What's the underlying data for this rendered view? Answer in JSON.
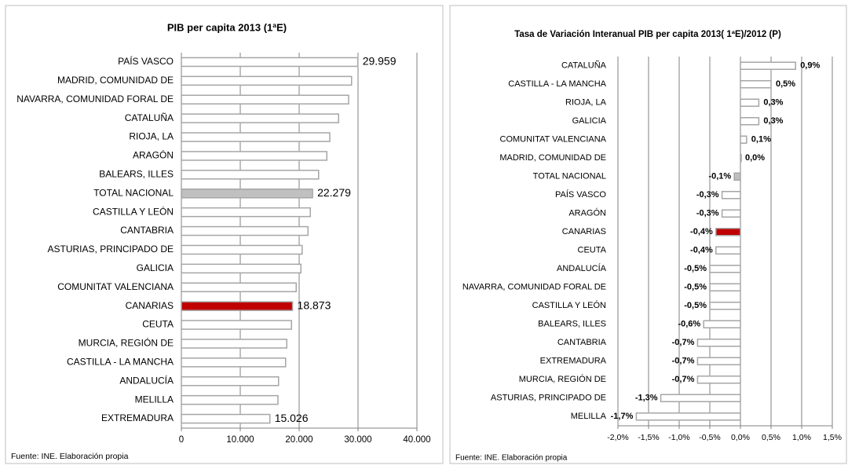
{
  "chart_data": [
    {
      "type": "bar",
      "orientation": "horizontal",
      "title": "PIB per capita  2013  (1ªE)",
      "source": "Fuente: INE.   Elaboración propia",
      "categories": [
        "PAÍS VASCO",
        "MADRID, COMUNIDAD DE",
        "NAVARRA, COMUNIDAD FORAL DE",
        "CATALUÑA",
        "RIOJA, LA",
        "ARAGÓN",
        "BALEARS, ILLES",
        "TOTAL NACIONAL",
        "CASTILLA Y LEÓN",
        "CANTABRIA",
        "ASTURIAS, PRINCIPADO DE",
        "GALICIA",
        "COMUNITAT VALENCIANA",
        "CANARIAS",
        "CEUTA",
        "MURCIA, REGIÓN DE",
        "CASTILLA - LA MANCHA",
        "ANDALUCÍA",
        "MELILLA",
        "EXTREMADURA"
      ],
      "values": [
        29959,
        28900,
        28400,
        26700,
        25200,
        24700,
        23300,
        22279,
        21900,
        21500,
        20500,
        20300,
        19500,
        18873,
        18700,
        17900,
        17700,
        16500,
        16400,
        15026
      ],
      "value_labels": [
        "29.959",
        null,
        null,
        null,
        null,
        null,
        null,
        "22.279",
        null,
        null,
        null,
        null,
        null,
        "18.873",
        null,
        null,
        null,
        null,
        null,
        "15.026"
      ],
      "colors": [
        "#ffffff",
        "#ffffff",
        "#ffffff",
        "#ffffff",
        "#ffffff",
        "#ffffff",
        "#ffffff",
        "#c0c0c0",
        "#ffffff",
        "#ffffff",
        "#ffffff",
        "#ffffff",
        "#ffffff",
        "#c00000",
        "#ffffff",
        "#ffffff",
        "#ffffff",
        "#ffffff",
        "#ffffff",
        "#ffffff"
      ],
      "edgecolor": "#a6a6a6",
      "xlim": [
        0,
        40000
      ],
      "xticks": [
        0,
        {
          "value": 10000,
          "label": "10.000"
        },
        {
          "value": 20000,
          "label": "20.000"
        },
        {
          "value": 30000,
          "label": "30.000"
        },
        {
          "value": 40000,
          "label": "40.000"
        }
      ],
      "grid": true
    },
    {
      "type": "bar",
      "orientation": "horizontal",
      "title": "Tasa de Variación Interanual  PIB per capita 2013( 1ªE)/2012  (P)",
      "source": "Fuente: INE.   Elaboración propia",
      "categories": [
        "CATALUÑA",
        "CASTILLA - LA MANCHA",
        "RIOJA, LA",
        "GALICIA",
        "COMUNITAT VALENCIANA",
        "MADRID, COMUNIDAD DE",
        "TOTAL NACIONAL",
        "PAÍS VASCO",
        "ARAGÓN",
        "CANARIAS",
        "CEUTA",
        "ANDALUCÍA",
        "NAVARRA, COMUNIDAD FORAL DE",
        "CASTILLA Y LEÓN",
        "BALEARS, ILLES",
        "CANTABRIA",
        "EXTREMADURA",
        "MURCIA, REGIÓN DE",
        "ASTURIAS, PRINCIPADO DE",
        "MELILLA"
      ],
      "values": [
        0.9,
        0.5,
        0.3,
        0.3,
        0.1,
        0.0,
        -0.1,
        -0.3,
        -0.3,
        -0.4,
        -0.4,
        -0.5,
        -0.5,
        -0.5,
        -0.6,
        -0.7,
        -0.7,
        -0.7,
        -1.3,
        -1.7
      ],
      "value_labels": [
        "0,9%",
        "0,5%",
        "0,3%",
        "0,3%",
        "0,1%",
        "0,0%",
        "-0,1%",
        "-0,3%",
        "-0,3%",
        "-0,4%",
        "-0,4%",
        "-0,5%",
        "-0,5%",
        "-0,5%",
        "-0,6%",
        "-0,7%",
        "-0,7%",
        "-0,7%",
        "-1,3%",
        "-1,7%"
      ],
      "colors": [
        "#ffffff",
        "#ffffff",
        "#ffffff",
        "#ffffff",
        "#ffffff",
        "#ffffff",
        "#c0c0c0",
        "#ffffff",
        "#ffffff",
        "#c00000",
        "#ffffff",
        "#ffffff",
        "#ffffff",
        "#ffffff",
        "#ffffff",
        "#ffffff",
        "#ffffff",
        "#ffffff",
        "#ffffff",
        "#ffffff"
      ],
      "edgecolor": "#a6a6a6",
      "xlim": [
        -2.0,
        1.5
      ],
      "xticks": [
        {
          "value": -2.0,
          "label": "-2,0%"
        },
        {
          "value": -1.5,
          "label": "-1,5%"
        },
        {
          "value": -1.0,
          "label": "-1,0%"
        },
        {
          "value": -0.5,
          "label": "-0,5%"
        },
        {
          "value": 0.0,
          "label": "0,0%"
        },
        {
          "value": 0.5,
          "label": "0,5%"
        },
        {
          "value": 1.0,
          "label": "1,0%"
        },
        {
          "value": 1.5,
          "label": "1,5%"
        }
      ],
      "grid": true
    }
  ]
}
